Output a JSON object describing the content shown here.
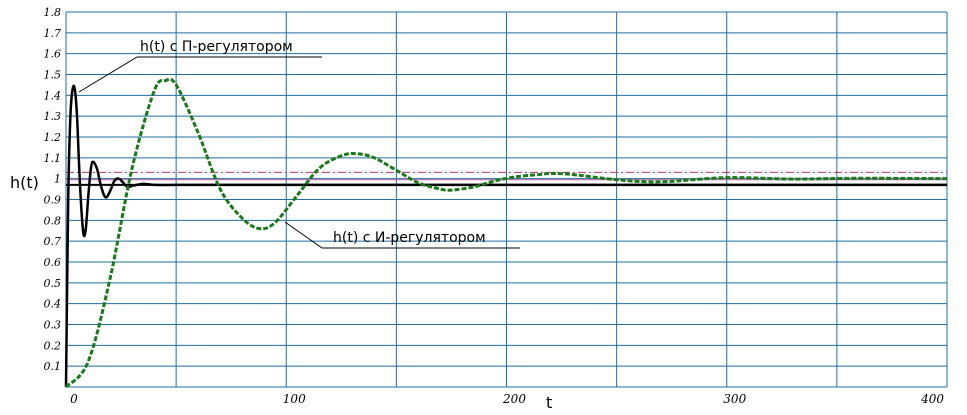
{
  "chart_data": {
    "type": "line",
    "xlabel": "t",
    "ylabel": "h(t)",
    "xlim": [
      0,
      400
    ],
    "ylim": [
      0,
      1.8
    ],
    "x_ticks": [
      "0",
      "100",
      "200",
      "300",
      "400"
    ],
    "y_ticks": [
      "0.1",
      "0.2",
      "0.3",
      "0.4",
      "0.5",
      "0.6",
      "0.7",
      "0.8",
      "0.9",
      "1",
      "1.1",
      "1.2",
      "1.3",
      "1.4",
      "1.5",
      "1.6",
      "1.7",
      "1.8"
    ],
    "grid": true,
    "colors": {
      "grid": "#1f6f9f",
      "p_series": "#000000",
      "i_series": "#1a7a1a",
      "steady_line": "#000000",
      "band_upper": "#b0307a",
      "band_lower": "#c060a0"
    },
    "series": [
      {
        "name": "h(t) с П-регулятором",
        "style": "solid",
        "x": [
          0,
          1,
          2,
          3,
          4,
          5,
          6,
          7,
          8,
          9,
          10,
          11,
          12,
          14,
          16,
          18,
          20,
          22,
          24,
          26,
          28,
          30,
          35,
          40,
          50,
          60,
          80,
          100,
          150,
          200,
          250,
          300,
          350,
          400
        ],
        "y": [
          0,
          0.9,
          1.3,
          1.43,
          1.43,
          1.3,
          1.05,
          0.85,
          0.73,
          0.76,
          0.9,
          1.02,
          1.08,
          1.05,
          0.96,
          0.91,
          0.94,
          0.99,
          1.0,
          0.98,
          0.96,
          0.965,
          0.975,
          0.97,
          0.97,
          0.97,
          0.97,
          0.97,
          0.97,
          0.97,
          0.97,
          0.97,
          0.97,
          0.97
        ]
      },
      {
        "name": "h(t) с И-регулятором",
        "style": "dashed",
        "x": [
          0,
          10,
          20,
          30,
          40,
          45,
          50,
          60,
          70,
          80,
          88,
          95,
          105,
          115,
          125,
          132,
          140,
          150,
          160,
          170,
          175,
          185,
          195,
          205,
          215,
          220,
          230,
          250,
          270,
          300,
          330,
          360,
          400
        ],
        "y": [
          0,
          0.12,
          0.52,
          1.05,
          1.42,
          1.47,
          1.45,
          1.22,
          0.95,
          0.81,
          0.76,
          0.79,
          0.92,
          1.05,
          1.11,
          1.12,
          1.1,
          1.04,
          0.98,
          0.95,
          0.945,
          0.96,
          0.99,
          1.01,
          1.02,
          1.025,
          1.02,
          0.995,
          0.985,
          1.005,
          0.998,
          1.002,
          1.0
        ]
      }
    ],
    "reference_lines": [
      {
        "y": 0.97,
        "style": "solid"
      },
      {
        "y": 1.03,
        "style": "dash-dot"
      },
      {
        "y": 0.995,
        "style": "solid"
      }
    ],
    "annotations": [
      {
        "text": "h(t) с П-регулятором",
        "points_to_series": 0
      },
      {
        "text": "h(t) с И-регулятором",
        "points_to_series": 1
      }
    ]
  }
}
